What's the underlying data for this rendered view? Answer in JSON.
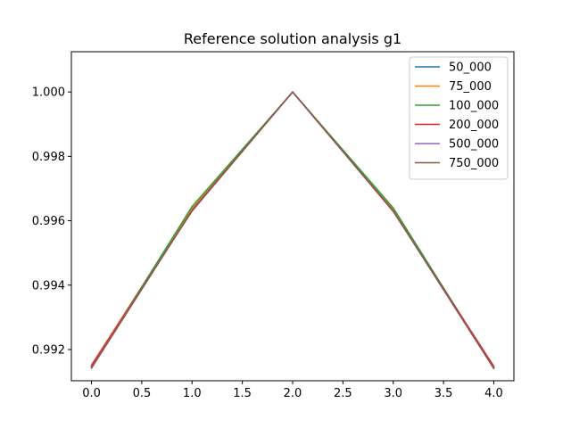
{
  "chart_data": {
    "type": "line",
    "title": "Reference solution analysis g1",
    "xlabel": "",
    "ylabel": "",
    "x": [
      0,
      1,
      2,
      3,
      4
    ],
    "xlim": [
      -0.2,
      4.2
    ],
    "ylim": [
      0.99103,
      1.00125
    ],
    "x_ticks": [
      0.0,
      0.5,
      1.0,
      1.5,
      2.0,
      2.5,
      3.0,
      3.5,
      4.0
    ],
    "x_tick_labels": [
      "0.0",
      "0.5",
      "1.0",
      "1.5",
      "2.0",
      "2.5",
      "3.0",
      "3.5",
      "4.0"
    ],
    "y_ticks": [
      0.992,
      0.994,
      0.996,
      0.998,
      1.0
    ],
    "y_tick_labels": [
      "0.992",
      "0.994",
      "0.996",
      "0.998",
      "1.000"
    ],
    "grid": false,
    "legend_position": "top-right",
    "series": [
      {
        "name": "50_000",
        "color": "#1f77b4",
        "values": [
          0.99148,
          0.99635,
          1.0,
          0.99632,
          0.99145
        ]
      },
      {
        "name": "75_000",
        "color": "#ff7f0e",
        "values": [
          0.99152,
          0.99638,
          1.0,
          0.99634,
          0.99147
        ]
      },
      {
        "name": "100_000",
        "color": "#2ca02c",
        "values": [
          0.99145,
          0.99644,
          1.0,
          0.9964,
          0.99143
        ]
      },
      {
        "name": "200_000",
        "color": "#d62728",
        "values": [
          0.9915,
          0.9963,
          1.0,
          0.99629,
          0.99148
        ]
      },
      {
        "name": "500_000",
        "color": "#9467bd",
        "values": [
          0.99144,
          0.99633,
          1.0,
          0.99631,
          0.99142
        ]
      },
      {
        "name": "750_000",
        "color": "#8c564b",
        "values": [
          0.99142,
          0.99632,
          1.0,
          0.9963,
          0.99141
        ]
      }
    ]
  }
}
